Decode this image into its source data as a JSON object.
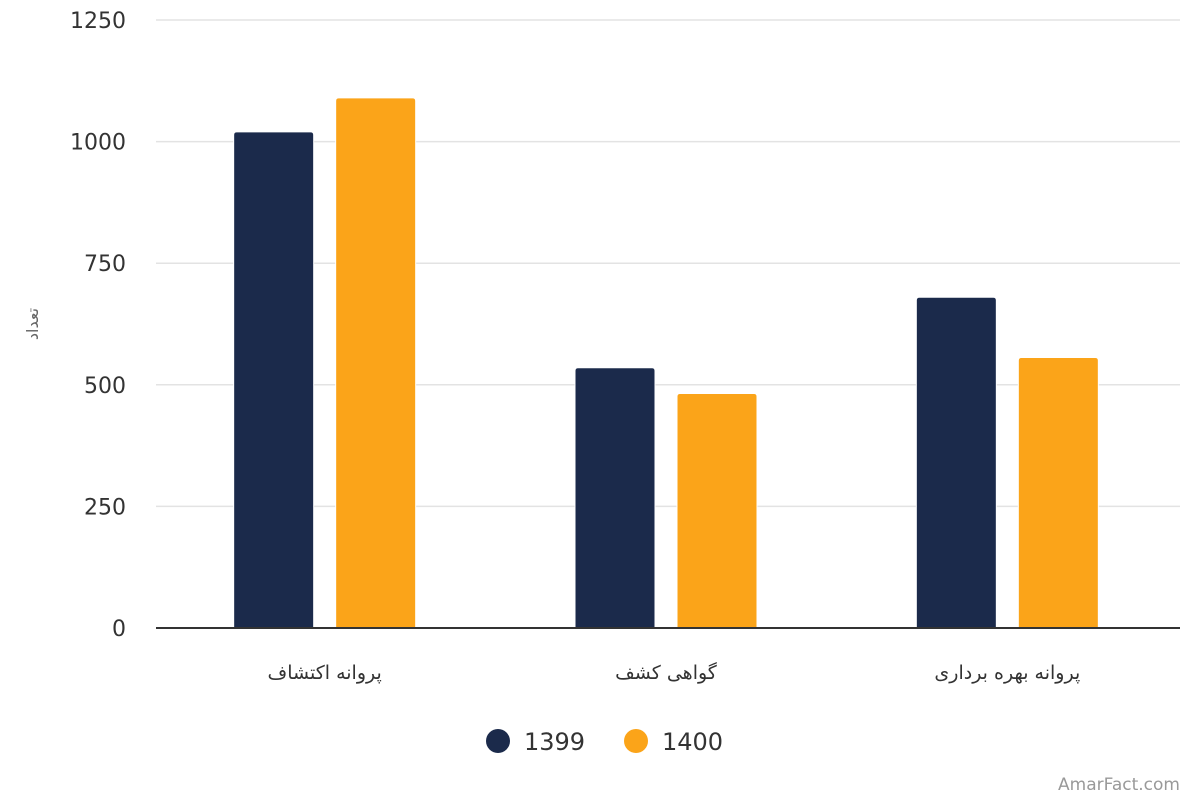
{
  "chart_data": {
    "type": "bar",
    "title": "",
    "xlabel": "",
    "ylabel": "تعداد",
    "categories": [
      "پروانه اکتشاف",
      "گواهی کشف",
      "پروانه بهره برداری"
    ],
    "series": [
      {
        "name": "1399",
        "values": [
          1020,
          535,
          680
        ],
        "color": "#1b2a4b"
      },
      {
        "name": "1400",
        "values": [
          1090,
          482,
          556
        ],
        "color": "#fba419"
      }
    ],
    "ylim": [
      0,
      1250
    ],
    "yticks": [
      0,
      250,
      500,
      750,
      1000,
      1250
    ],
    "grid": true,
    "legend_position": "bottom-center"
  },
  "watermark": "AmarFact.com"
}
